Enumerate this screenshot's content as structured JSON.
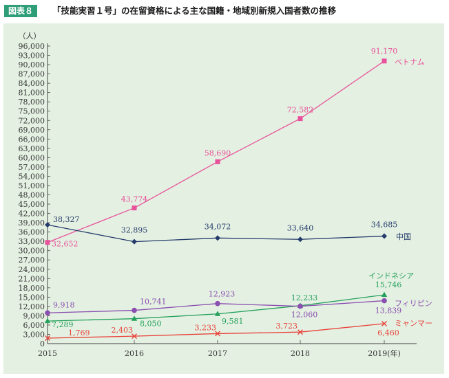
{
  "header": {
    "badge": "図表８",
    "title": "「技能実習１号」の在留資格による主な国籍・地域別新規入国者数の推移"
  },
  "colors": {
    "accent": "#2e9e78",
    "panel": "#e4f0e2",
    "vietnam": "#e8529a",
    "china": "#243b6b",
    "indonesia": "#23a05a",
    "philippines": "#8a4fb0",
    "myanmar": "#e8423a"
  },
  "chart_data": {
    "type": "line",
    "y_unit_label": "（人）",
    "x_suffix": "(年)",
    "categories": [
      "2015",
      "2016",
      "2017",
      "2018",
      "2019"
    ],
    "ylim": [
      0,
      96000
    ],
    "y_tick_step": 3000,
    "y_tick_labels": [
      "0",
      "3,000",
      "6,000",
      "9,000",
      "12,000",
      "15,000",
      "18,000",
      "21,000",
      "24,000",
      "27,000",
      "30,000",
      "33,000",
      "36,000",
      "39,000",
      "42,000",
      "45,000",
      "48,000",
      "51,000",
      "54,000",
      "57,000",
      "60,000",
      "63,000",
      "66,000",
      "69,000",
      "72,000",
      "75,000",
      "78,000",
      "81,000",
      "84,000",
      "87,000",
      "90,000",
      "93,000",
      "96,000"
    ],
    "grid": false,
    "series": [
      {
        "name": "ベトナム",
        "marker": "square",
        "values": [
          32652,
          43774,
          58690,
          72582,
          91170
        ],
        "labels": [
          "32,652",
          "43,774",
          "58,690",
          "72,582",
          "91,170"
        ]
      },
      {
        "name": "中国",
        "marker": "diamond",
        "values": [
          38327,
          32895,
          34072,
          33640,
          34685
        ],
        "labels": [
          "38,327",
          "32,895",
          "34,072",
          "33,640",
          "34,685"
        ]
      },
      {
        "name": "インドネシア",
        "marker": "triangle",
        "values": [
          7289,
          8050,
          9581,
          12233,
          15746
        ],
        "labels": [
          "7,289",
          "8,050",
          "9,581",
          "12,233",
          "15,746"
        ]
      },
      {
        "name": "フィリピン",
        "marker": "circle",
        "values": [
          9918,
          10741,
          12923,
          12060,
          13839
        ],
        "labels": [
          "9,918",
          "10,741",
          "12,923",
          "12,060",
          "13,839"
        ]
      },
      {
        "name": "ミャンマー",
        "marker": "cross",
        "values": [
          1769,
          2403,
          3233,
          3723,
          6460
        ],
        "labels": [
          "1,769",
          "2,403",
          "3,233",
          "3,723",
          "6,460"
        ]
      }
    ]
  }
}
